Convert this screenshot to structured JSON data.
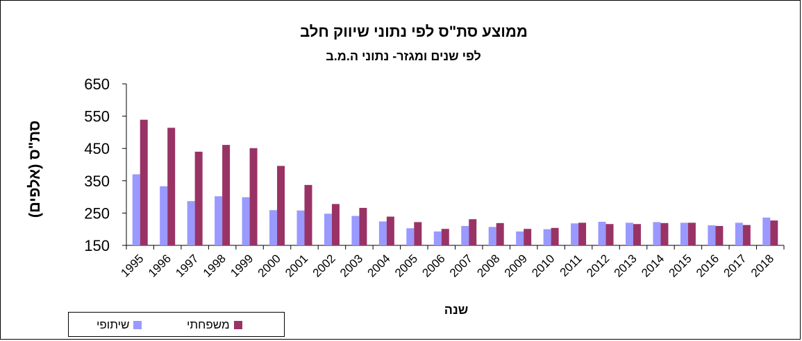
{
  "chart_data": {
    "type": "bar",
    "title": "ממוצע סת\"ס לפי נתוני שיווק חלב",
    "subtitle": "לפי שנים ומגזר- נתוני ה.מ.ב",
    "xlabel": "שנה",
    "ylabel": "סת\"ס (אלפים)",
    "ylim": [
      150,
      650
    ],
    "yticks": [
      "650",
      "550",
      "450",
      "350",
      "250",
      "150"
    ],
    "categories": [
      "1995",
      "1996",
      "1997",
      "1998",
      "1999",
      "2000",
      "2001",
      "2002",
      "2003",
      "2004",
      "2005",
      "2006",
      "2007",
      "2008",
      "2009",
      "2010",
      "2011",
      "2012",
      "2013",
      "2014",
      "2015",
      "2016",
      "2017",
      "2018"
    ],
    "series": [
      {
        "name": "שיתופי",
        "color": "#9999ff",
        "values": [
          370,
          333,
          287,
          302,
          299,
          259,
          258,
          248,
          241,
          224,
          203,
          193,
          210,
          207,
          193,
          200,
          218,
          223,
          220,
          222,
          220,
          212,
          220,
          236
        ]
      },
      {
        "name": "משפחתי",
        "color": "#993366",
        "values": [
          539,
          514,
          440,
          461,
          451,
          396,
          337,
          278,
          266,
          239,
          222,
          201,
          231,
          219,
          201,
          204,
          220,
          216,
          216,
          219,
          220,
          210,
          213,
          227
        ]
      }
    ],
    "legend_position": "bottom-left",
    "grid": false
  }
}
